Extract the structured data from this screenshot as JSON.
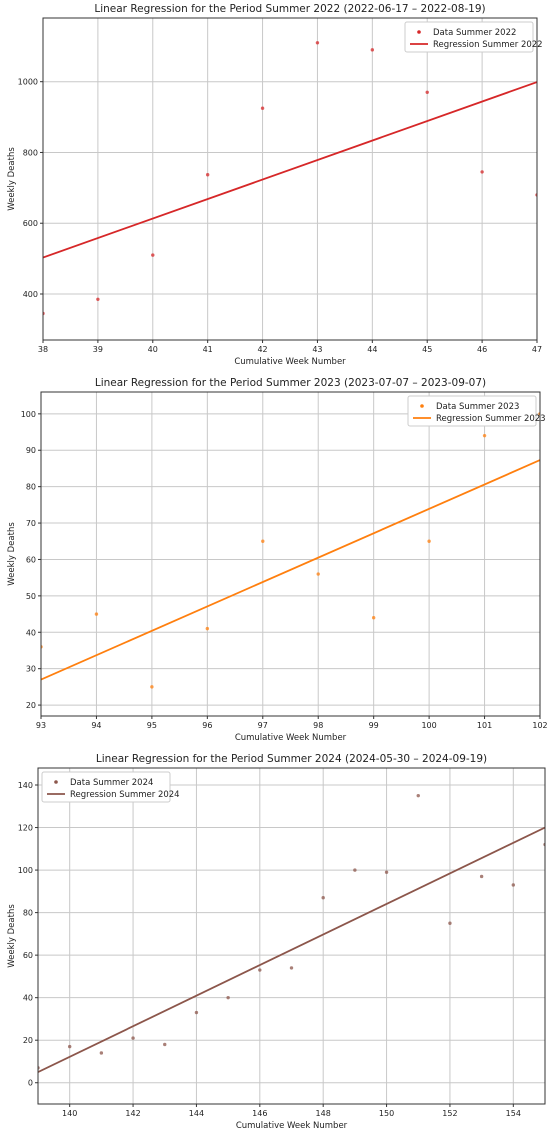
{
  "chart_data": [
    {
      "type": "scatter",
      "title": "Linear Regression for the Period Summer 2022 (2022-06-17 – 2022-08-19)",
      "xlabel": "Cumulative Week Number",
      "ylabel": "Weekly Deaths",
      "xlim": [
        38,
        47
      ],
      "ylim": [
        270,
        1180
      ],
      "xticks": [
        38,
        39,
        40,
        41,
        42,
        43,
        44,
        45,
        46,
        47
      ],
      "yticks": [
        400,
        600,
        800,
        1000
      ],
      "grid": true,
      "legend_position": "top-right",
      "color": "#d62728",
      "series": [
        {
          "name": "Data Summer 2022",
          "kind": "points",
          "x": [
            38,
            39,
            40,
            41,
            42,
            43,
            44,
            45,
            46,
            47
          ],
          "y": [
            345,
            385,
            510,
            737,
            925,
            1110,
            1090,
            970,
            745,
            680
          ]
        },
        {
          "name": "Regression Summer 2022",
          "kind": "line",
          "x": [
            38,
            47
          ],
          "y": [
            503,
            999
          ]
        }
      ]
    },
    {
      "type": "scatter",
      "title": "Linear Regression for the Period Summer 2023 (2023-07-07 – 2023-09-07)",
      "xlabel": "Cumulative Week Number",
      "ylabel": "Weekly Deaths",
      "xlim": [
        93,
        102
      ],
      "ylim": [
        17,
        106
      ],
      "xticks": [
        93,
        94,
        95,
        96,
        97,
        98,
        99,
        100,
        101,
        102
      ],
      "yticks": [
        20,
        30,
        40,
        50,
        60,
        70,
        80,
        90,
        100
      ],
      "grid": true,
      "legend_position": "top-right",
      "color": "#ff7f0e",
      "series": [
        {
          "name": "Data Summer 2023",
          "kind": "points",
          "x": [
            93,
            94,
            95,
            96,
            97,
            98,
            99,
            100,
            101,
            102
          ],
          "y": [
            36,
            45,
            25,
            41,
            65,
            56,
            44,
            65,
            94,
            100
          ]
        },
        {
          "name": "Regression Summer 2023",
          "kind": "line",
          "x": [
            93,
            102
          ],
          "y": [
            27,
            87.3
          ]
        }
      ]
    },
    {
      "type": "scatter",
      "title": "Linear Regression for the Period Summer 2024 (2024-05-30 – 2024-09-19)",
      "xlabel": "Cumulative Week Number",
      "ylabel": "Weekly Deaths",
      "xlim": [
        139,
        155
      ],
      "ylim": [
        -10,
        148
      ],
      "xticks": [
        140,
        142,
        144,
        146,
        148,
        150,
        152,
        154
      ],
      "yticks": [
        0,
        20,
        40,
        60,
        80,
        100,
        120,
        140
      ],
      "grid": true,
      "legend_position": "top-left",
      "color": "#8c564b",
      "series": [
        {
          "name": "Data Summer 2024",
          "kind": "points",
          "x": [
            139,
            140,
            141,
            142,
            143,
            144,
            145,
            146,
            147,
            148,
            149,
            150,
            151,
            152,
            153,
            154,
            155
          ],
          "y": [
            7,
            17,
            14,
            21,
            18,
            33,
            40,
            53,
            54,
            87,
            100,
            99,
            135,
            75,
            97,
            93,
            112
          ]
        },
        {
          "name": "Regression Summer 2024",
          "kind": "line",
          "x": [
            139,
            155
          ],
          "y": [
            5,
            120
          ]
        }
      ]
    }
  ]
}
